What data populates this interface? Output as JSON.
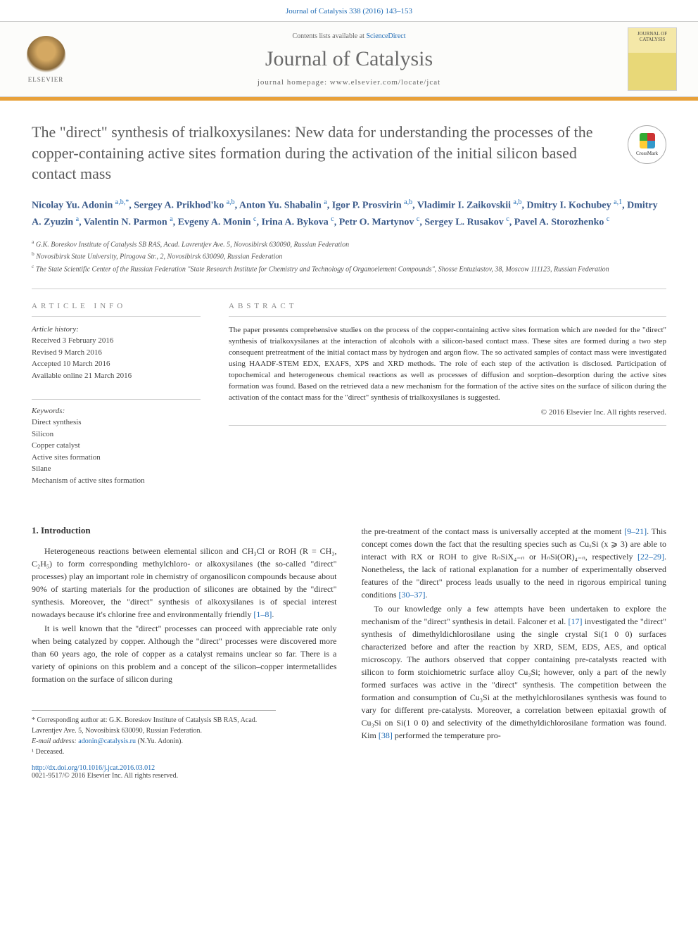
{
  "header": {
    "citation": "Journal of Catalysis 338 (2016) 143–153",
    "contents_prefix": "Contents lists available at ",
    "contents_link": "ScienceDirect",
    "journal_name": "Journal of Catalysis",
    "homepage_prefix": "journal homepage: ",
    "homepage_url": "www.elsevier.com/locate/jcat",
    "publisher_logo_text": "ELSEVIER",
    "cover_small_title": "JOURNAL OF CATALYSIS"
  },
  "article": {
    "title": "The \"direct\" synthesis of trialkoxysilanes: New data for understanding the processes of the copper-containing active sites formation during the activation of the initial silicon based contact mass",
    "crossmark_label": "CrossMark",
    "authors_html": "Nicolay Yu. Adonin <sup>a,b,*</sup>, Sergey A. Prikhod'ko <sup>a,b</sup>, Anton Yu. Shabalin <sup>a</sup>, Igor P. Prosvirin <sup>a,b</sup>, Vladimir I. Zaikovskii <sup>a,b</sup>, Dmitry I. Kochubey <sup>a,1</sup>, Dmitry A. Zyuzin <sup>a</sup>, Valentin N. Parmon <sup>a</sup>, Evgeny A. Monin <sup>c</sup>, Irina A. Bykova <sup>c</sup>, Petr O. Martynov <sup>c</sup>, Sergey L. Rusakov <sup>c</sup>, Pavel A. Storozhenko <sup>c</sup>",
    "affiliations": [
      {
        "sup": "a",
        "text": "G.K. Boreskov Institute of Catalysis SB RAS, Acad. Lavrentjev Ave. 5, Novosibirsk 630090, Russian Federation"
      },
      {
        "sup": "b",
        "text": "Novosibirsk State University, Pirogova Str., 2, Novosibirsk 630090, Russian Federation"
      },
      {
        "sup": "c",
        "text": "The State Scientific Center of the Russian Federation \"State Research Institute for Chemistry and Technology of Organoelement Compounds\", Shosse Entuziastov, 38, Moscow 111123, Russian Federation"
      }
    ]
  },
  "info": {
    "label": "article info",
    "history_label": "Article history:",
    "history": [
      "Received 3 February 2016",
      "Revised 9 March 2016",
      "Accepted 10 March 2016",
      "Available online 21 March 2016"
    ],
    "keywords_label": "Keywords:",
    "keywords": [
      "Direct synthesis",
      "Silicon",
      "Copper catalyst",
      "Active sites formation",
      "Silane",
      "Mechanism of active sites formation"
    ]
  },
  "abstract": {
    "label": "abstract",
    "text": "The paper presents comprehensive studies on the process of the copper-containing active sites formation which are needed for the \"direct\" synthesis of trialkoxysilanes at the interaction of alcohols with a silicon-based contact mass. These sites are formed during a two step consequent pretreatment of the initial contact mass by hydrogen and argon flow. The so activated samples of contact mass were investigated using HAADF-STEM EDX, EXAFS, XPS and XRD methods. The role of each step of the activation is disclosed. Participation of topochemical and heterogeneous chemical reactions as well as processes of diffusion and sorption–desorption during the active sites formation was found. Based on the retrieved data a new mechanism for the formation of the active sites on the surface of silicon during the activation of the contact mass for the \"direct\" synthesis of trialkoxysilanes is suggested.",
    "copyright": "© 2016 Elsevier Inc. All rights reserved."
  },
  "body": {
    "left": {
      "heading": "1. Introduction",
      "p1": "Heterogeneous reactions between elemental silicon and CH₃Cl or ROH (R = CH₃, C₂H₅) to form corresponding methylchloro- or alkoxysilanes (the so-called \"direct\" processes) play an important role in chemistry of organosilicon compounds because about 90% of starting materials for the production of silicones are obtained by the \"direct\" synthesis. Moreover, the \"direct\" synthesis of alkoxysilanes is of special interest nowadays because it's chlorine free and environmentally friendly ",
      "p1_ref": "[1–8]",
      "p1_tail": ".",
      "p2": "It is well known that the \"direct\" processes can proceed with appreciable rate only when being catalyzed by copper. Although the \"direct\" processes were discovered more than 60 years ago, the role of copper as a catalyst remains unclear so far. There is a variety of opinions on this problem and a concept of the silicon–copper intermetallides formation on the surface of silicon during"
    },
    "right": {
      "p1_pre": "the pre-treatment of the contact mass is universally accepted at the moment ",
      "p1_ref1": "[9–21]",
      "p1_mid": ". This concept comes down the fact that the resulting species such as CuₓSi (x ⩾ 3) are able to interact with RX or ROH to give RₙSiX₄₋ₙ or HₙSi(OR)₄₋ₙ, respectively ",
      "p1_ref2": "[22–29]",
      "p1_mid2": ". Nonetheless, the lack of rational explanation for a number of experimentally observed features of the \"direct\" process leads usually to the need in rigorous empirical tuning conditions ",
      "p1_ref3": "[30–37]",
      "p1_tail": ".",
      "p2_pre": "To our knowledge only a few attempts have been undertaken to explore the mechanism of the \"direct\" synthesis in detail. Falconer et al. ",
      "p2_ref1": "[17]",
      "p2_mid": " investigated the \"direct\" synthesis of dimethyldichlorosilane using the single crystal Si(1 0 0) surfaces characterized before and after the reaction by XRD, SEM, EDS, AES, and optical microscopy. The authors observed that copper containing pre-catalysts reacted with silicon to form stoichiometric surface alloy Cu₃Si; however, only a part of the newly formed surfaces was active in the \"direct\" synthesis. The competition between the formation and consumption of Cu₃Si at the methylchlorosilanes synthesis was found to vary for different pre-catalysts. Moreover, a correlation between epitaxial growth of Cu₃Si on Si(1 0 0) and selectivity of the dimethyldichlorosilane formation was found. Kim ",
      "p2_ref2": "[38]",
      "p2_tail": " performed the temperature pro-"
    }
  },
  "footnotes": {
    "corr": "* Corresponding author at: G.K. Boreskov Institute of Catalysis SB RAS, Acad. Lavrentjev Ave. 5, Novosibirsk 630090, Russian Federation.",
    "email_label": "E-mail address: ",
    "email": "adonin@catalysis.ru",
    "email_attr": " (N.Yu. Adonin).",
    "deceased": "¹ Deceased."
  },
  "footer": {
    "doi": "http://dx.doi.org/10.1016/j.jcat.2016.03.012",
    "issn_copyright": "0021-9517/© 2016 Elsevier Inc. All rights reserved."
  },
  "colors": {
    "link": "#1f6bb5",
    "orange_bar": "#e8a13a",
    "title_gray": "#5a5a5a",
    "author_blue": "#3a5a8a"
  }
}
